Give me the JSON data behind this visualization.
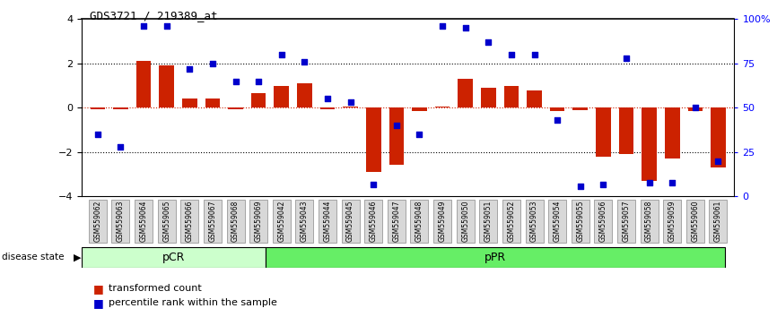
{
  "title": "GDS3721 / 219389_at",
  "samples": [
    "GSM559062",
    "GSM559063",
    "GSM559064",
    "GSM559065",
    "GSM559066",
    "GSM559067",
    "GSM559068",
    "GSM559069",
    "GSM559042",
    "GSM559043",
    "GSM559044",
    "GSM559045",
    "GSM559046",
    "GSM559047",
    "GSM559048",
    "GSM559049",
    "GSM559050",
    "GSM559051",
    "GSM559052",
    "GSM559053",
    "GSM559054",
    "GSM559055",
    "GSM559056",
    "GSM559057",
    "GSM559058",
    "GSM559059",
    "GSM559060",
    "GSM559061"
  ],
  "transformed_count": [
    -0.05,
    -0.08,
    2.1,
    1.9,
    0.4,
    0.4,
    -0.05,
    0.65,
    1.0,
    1.1,
    -0.05,
    0.05,
    -2.9,
    -2.55,
    -0.15,
    0.05,
    1.3,
    0.9,
    1.0,
    0.8,
    -0.15,
    -0.1,
    -2.2,
    -2.1,
    -3.3,
    -2.3,
    -0.15,
    -2.7
  ],
  "percentile_rank": [
    35,
    28,
    96,
    96,
    72,
    75,
    65,
    65,
    80,
    76,
    55,
    53,
    7,
    40,
    35,
    96,
    95,
    87,
    80,
    80,
    43,
    6,
    7,
    78,
    8,
    8,
    50,
    20
  ],
  "pCR_count": 8,
  "pPR_count": 20,
  "bar_color": "#cc2200",
  "dot_color": "#0000cc",
  "ylim": [
    -4,
    4
  ],
  "y2lim": [
    0,
    100
  ],
  "yticks": [
    -4,
    -2,
    0,
    2,
    4
  ],
  "y2ticks": [
    0,
    25,
    50,
    75,
    100
  ],
  "y2ticklabels": [
    "0",
    "25",
    "50",
    "75",
    "100%"
  ],
  "dotted_lines": [
    -2,
    2
  ],
  "pcr_color": "#ccffcc",
  "ppr_color": "#66ee66",
  "label_transformed": "transformed count",
  "label_percentile": "percentile rank within the sample"
}
